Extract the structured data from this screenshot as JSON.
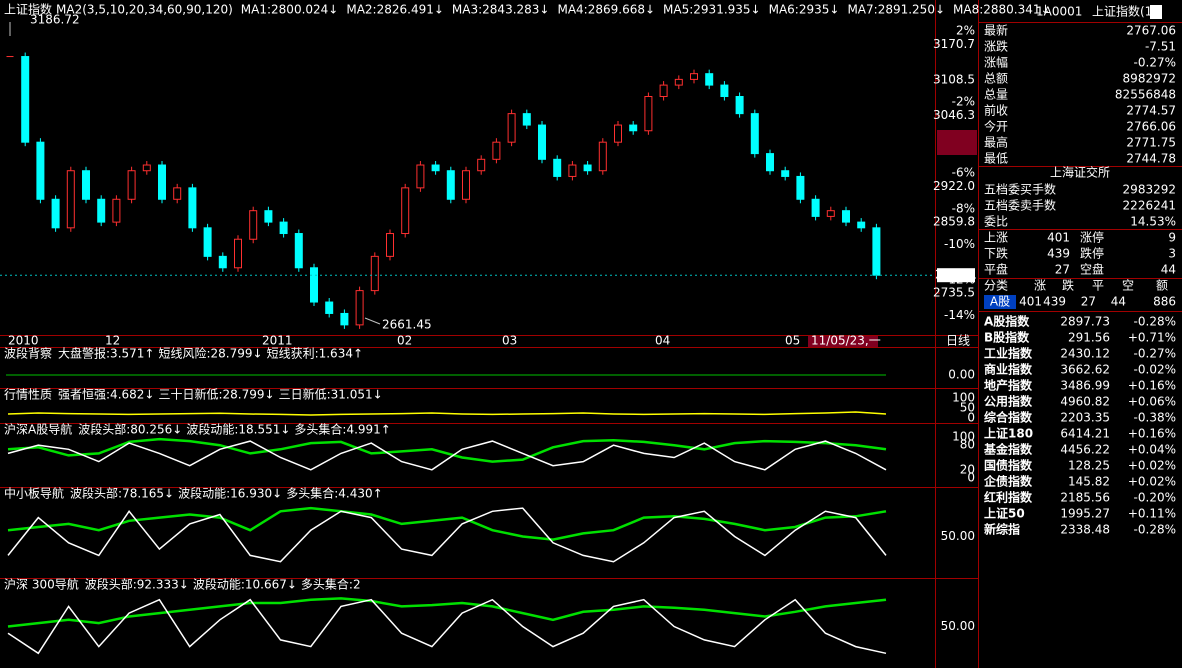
{
  "main": {
    "title": "上证指数",
    "ma_params": "MA2(3,5,10,20,34,60,90,120)",
    "ma": [
      {
        "text": "MA1:2800.024↓",
        "color": "#ffffff"
      },
      {
        "text": "MA2:2826.491↓",
        "color": "#ffff00"
      },
      {
        "text": "MA3:2843.283↓",
        "color": "#ff00ff"
      },
      {
        "text": "MA4:2869.668↓",
        "color": "#00ff00"
      },
      {
        "text": "MA5:2931.935↓",
        "color": "#ffffff"
      },
      {
        "text": "MA6:2935↓",
        "color": "#4a4aff"
      },
      {
        "text": "MA7:2891.250↓",
        "color": "#ff00ff"
      },
      {
        "text": "MA8:2880.341↓",
        "color": "#c8c800"
      }
    ],
    "high_label": "3186.72",
    "low_label": "2661.45",
    "price_tag": "2767.1",
    "cursor_date": "11/05/23,一",
    "period": "日线",
    "date_ticks": [
      "2010",
      "12",
      "2011",
      "02",
      "03",
      "04",
      "05"
    ],
    "ylim": [
      2650,
      3200
    ],
    "yticks": [
      3170.7,
      3108.5,
      3046.3,
      {
        "value": 2922.0,
        "label": "2922.0"
      },
      2859.8,
      2735.5
    ],
    "pct_ticks": [
      {
        "value": 2,
        "label": "2%"
      },
      {
        "value": -2,
        "label": "-2%"
      },
      {
        "value": -6,
        "label": "-6%"
      },
      {
        "value": -8,
        "label": "-8%"
      },
      {
        "value": -10,
        "label": "-10%"
      },
      {
        "value": -12,
        "label": "-12%"
      },
      {
        "value": -14,
        "label": "-14%"
      }
    ],
    "closes": [
      3150,
      3000,
      2900,
      2850,
      2950,
      2900,
      2860,
      2900,
      2950,
      2960,
      2900,
      2920,
      2850,
      2800,
      2780,
      2830,
      2880,
      2860,
      2840,
      2780,
      2720,
      2700,
      2680,
      2740,
      2800,
      2840,
      2920,
      2960,
      2950,
      2900,
      2950,
      2970,
      3000,
      3050,
      3030,
      2970,
      2940,
      2960,
      2950,
      3000,
      3030,
      3020,
      3080,
      3100,
      3110,
      3120,
      3100,
      3080,
      3050,
      2980,
      2950,
      2940,
      2900,
      2870,
      2880,
      2860,
      2850,
      2767
    ]
  },
  "panels": [
    {
      "name": "波段背察",
      "name_color": "#8080ff",
      "items": [
        {
          "text": "大盘警报:3.571↑",
          "color": "#ffffff"
        },
        {
          "text": "短线风险:28.799↓",
          "color": "#ffffff"
        },
        {
          "text": "短线获利:1.634↑",
          "color": "#ffffff"
        }
      ],
      "axis_labels": [
        "0.00"
      ]
    },
    {
      "name": "行情性质",
      "name_color": "#c0c0c0",
      "items": [
        {
          "text": "强者恒强:4.682↓",
          "color": "#ffff00"
        },
        {
          "text": "三十日新低:28.799↓",
          "color": "#ffffff"
        },
        {
          "text": "三日新低:31.051↓",
          "color": "#ffffff"
        }
      ],
      "ylim": [
        0,
        100
      ],
      "yticks": [
        100,
        50,
        0
      ],
      "lines": [
        {
          "color": "#ffff00",
          "values": [
            20,
            25,
            22,
            20,
            18,
            20,
            22,
            24,
            20,
            18,
            15,
            18,
            20,
            22,
            25,
            20,
            18,
            20,
            22,
            25,
            20,
            18,
            20,
            22,
            20,
            18,
            22,
            25,
            30,
            20
          ]
        }
      ]
    },
    {
      "name": "沪深A股导航",
      "name_color": "#4a8aff",
      "items": [
        {
          "text": "波段头部:80.256↓",
          "color": "#ffffff"
        },
        {
          "text": "波段动能:18.551↓",
          "color": "#ffff00"
        },
        {
          "text": "多头集合:4.991↑",
          "color": "#ff2020"
        }
      ],
      "ylim": [
        0,
        100
      ],
      "yticks": [
        100,
        80,
        20,
        0
      ],
      "lines": [
        {
          "color": "#00e000",
          "values": [
            70,
            75,
            55,
            60,
            88,
            95,
            90,
            80,
            60,
            70,
            85,
            88,
            60,
            65,
            70,
            50,
            40,
            45,
            75,
            90,
            92,
            88,
            80,
            70,
            85,
            90,
            88,
            85,
            80,
            70
          ]
        },
        {
          "color": "#ffffff",
          "values": [
            60,
            80,
            70,
            40,
            85,
            60,
            30,
            70,
            90,
            50,
            20,
            60,
            85,
            40,
            20,
            70,
            90,
            60,
            30,
            40,
            80,
            60,
            50,
            85,
            40,
            20,
            70,
            90,
            60,
            20
          ]
        }
      ]
    },
    {
      "name": "中小板导航",
      "name_color": "#4a8aff",
      "items": [
        {
          "text": "波段头部:78.165↓",
          "color": "#ffffff"
        },
        {
          "text": "波段动能:16.930↓",
          "color": "#ffff00"
        },
        {
          "text": "多头集合:4.430↑",
          "color": "#ff2020"
        }
      ],
      "ylim": [
        0,
        100
      ],
      "yticks": [
        {
          "value": 50,
          "label": "50.00"
        }
      ],
      "lines": [
        {
          "color": "#00e000",
          "values": [
            60,
            65,
            70,
            60,
            75,
            80,
            85,
            80,
            60,
            90,
            95,
            90,
            85,
            70,
            75,
            80,
            60,
            50,
            45,
            55,
            60,
            80,
            82,
            78,
            70,
            60,
            65,
            80,
            82,
            90
          ]
        },
        {
          "color": "#ffffff",
          "values": [
            20,
            80,
            40,
            20,
            90,
            30,
            70,
            85,
            20,
            10,
            60,
            90,
            80,
            30,
            20,
            70,
            90,
            95,
            40,
            20,
            10,
            40,
            80,
            90,
            50,
            20,
            60,
            90,
            80,
            20
          ]
        }
      ]
    },
    {
      "name": "沪深 300导航",
      "name_color": "#4a8aff",
      "items": [
        {
          "text": "波段头部:92.333↓",
          "color": "#ffffff"
        },
        {
          "text": "波段动能:10.667↓",
          "color": "#ffff00"
        },
        {
          "text": "多头集合:2",
          "color": "#ff2020"
        }
      ],
      "ylim": [
        0,
        100
      ],
      "yticks": [
        {
          "value": 50,
          "label": "50.00"
        }
      ],
      "lines": [
        {
          "color": "#00e000",
          "values": [
            50,
            55,
            60,
            55,
            65,
            70,
            75,
            80,
            85,
            85,
            90,
            92,
            88,
            80,
            82,
            85,
            80,
            70,
            60,
            72,
            75,
            80,
            78,
            75,
            70,
            65,
            72,
            80,
            85,
            90
          ]
        },
        {
          "color": "#ffffff",
          "values": [
            40,
            10,
            80,
            20,
            70,
            90,
            20,
            60,
            90,
            30,
            20,
            80,
            90,
            40,
            20,
            70,
            90,
            50,
            20,
            40,
            80,
            90,
            50,
            30,
            20,
            60,
            90,
            40,
            20,
            10
          ]
        }
      ]
    }
  ],
  "quote": {
    "code": "1A0001",
    "name": "上证指数(1)",
    "rows": [
      {
        "label": "最新",
        "value": "2767.06",
        "color": "#00e000"
      },
      {
        "label": "涨跌",
        "value": "-7.51",
        "color": "#00e000"
      },
      {
        "label": "涨幅",
        "value": "-0.27%",
        "color": "#00e000"
      },
      {
        "label": "总额",
        "value": "8982972",
        "color": "#4a8aff"
      },
      {
        "label": "总量",
        "value": "82556848",
        "color": "#4a8aff"
      },
      {
        "label": "前收",
        "value": "2774.57",
        "color": "#ffffff"
      },
      {
        "label": "今开",
        "value": "2766.06",
        "color": "#00e000"
      },
      {
        "label": "最高",
        "value": "2771.75",
        "color": "#00e000"
      },
      {
        "label": "最低",
        "value": "2744.78",
        "color": "#00e000"
      }
    ],
    "exchange": "上海证交所",
    "orders": [
      {
        "label": "五档委买手数",
        "value": "2983292",
        "color": "#ff3030"
      },
      {
        "label": "五档委卖手数",
        "value": "2226241",
        "color": "#00e000"
      },
      {
        "label": "委比",
        "value": "14.53%",
        "color": "#ff3030"
      }
    ],
    "breadth": [
      [
        "上涨",
        "401",
        "涨停",
        "9"
      ],
      [
        "下跌",
        "439",
        "跌停",
        "3"
      ],
      [
        "平盘",
        "27",
        "空盘",
        "44"
      ]
    ],
    "table_header": [
      "分类",
      "涨",
      "跌",
      "平",
      "空",
      "额"
    ],
    "table_row": [
      "A股",
      "401",
      "439",
      "27",
      "44",
      "886"
    ],
    "indices": [
      [
        "A股指数",
        "2897.73",
        "-0.28%"
      ],
      [
        "B股指数",
        "291.56",
        "+0.71%"
      ],
      [
        "工业指数",
        "2430.12",
        "-0.27%"
      ],
      [
        "商业指数",
        "3662.62",
        "-0.02%"
      ],
      [
        "地产指数",
        "3486.99",
        "+0.16%"
      ],
      [
        "公用指数",
        "4960.82",
        "+0.06%"
      ],
      [
        "综合指数",
        "2203.35",
        "-0.38%"
      ],
      [
        "上证180",
        "6414.21",
        "+0.16%"
      ],
      [
        "基金指数",
        "4456.22",
        "+0.04%"
      ],
      [
        "国债指数",
        "128.25",
        "+0.02%"
      ],
      [
        "企债指数",
        "145.82",
        "+0.02%"
      ],
      [
        "红利指数",
        "2185.56",
        "-0.20%"
      ],
      [
        "上证50",
        "1995.27",
        "+0.11%"
      ],
      [
        "新综指",
        "2338.48",
        "-0.28%"
      ]
    ]
  }
}
